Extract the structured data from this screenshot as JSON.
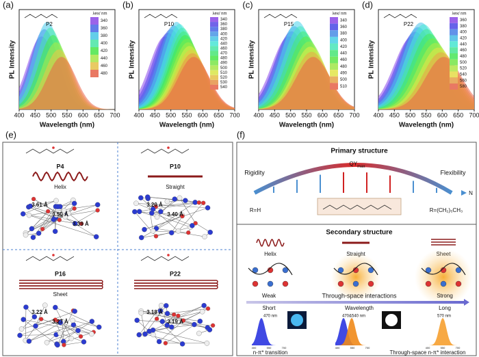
{
  "spectra": [
    {
      "label": "(a)",
      "polymer": "P2",
      "legend_title": "λex/ nm",
      "legend": [
        340,
        360,
        380,
        400,
        420,
        440,
        460,
        480
      ],
      "y_label": "PL Intensity",
      "x_label": "Wavelength (nm)",
      "xticks": [
        400,
        450,
        500,
        550,
        600,
        650,
        700
      ]
    },
    {
      "label": "(b)",
      "polymer": "P10",
      "legend_title": "λex/ nm",
      "legend": [
        340,
        360,
        380,
        400,
        420,
        440,
        460,
        470,
        480,
        490,
        500,
        510,
        520,
        530,
        540
      ],
      "y_label": "PL Intensity",
      "x_label": "Wavelength (nm)",
      "xticks": [
        400,
        450,
        500,
        550,
        600,
        650,
        700
      ]
    },
    {
      "label": "(c)",
      "polymer": "P15",
      "legend_title": "λex/ nm",
      "legend": [
        340,
        360,
        380,
        400,
        420,
        440,
        460,
        480,
        490,
        500,
        510
      ],
      "y_label": "PL Intensity",
      "x_label": "Wavelength (nm)",
      "xticks": [
        400,
        450,
        500,
        550,
        600,
        650,
        700
      ]
    },
    {
      "label": "(d)",
      "polymer": "P22",
      "legend_title": "λex/ nm",
      "legend": [
        360,
        380,
        400,
        420,
        440,
        460,
        480,
        500,
        520,
        540,
        560,
        580
      ],
      "y_label": "PL Intensity",
      "x_label": "Wavelength (nm)",
      "xticks": [
        400,
        450,
        500,
        550,
        600,
        650,
        700
      ]
    }
  ],
  "panel_e": {
    "label": "(e)",
    "cells": [
      {
        "polymer": "P4",
        "shape": "Helix",
        "distances": [
          "3.61 Å",
          "3.50 Å",
          "3.39 Å"
        ]
      },
      {
        "polymer": "P10",
        "shape": "Straight",
        "distances": [
          "3.20 Å",
          "3.40 Å"
        ]
      },
      {
        "polymer": "P16",
        "shape": "Sheet",
        "distances": [
          "3.22 Å",
          "3.27 Å"
        ]
      },
      {
        "polymer": "P22",
        "distances": [
          "3.18 Å",
          "3.19 Å"
        ]
      }
    ]
  },
  "panel_f": {
    "label": "(f)",
    "primary_title": "Primary structure",
    "qy": "QY",
    "qy_sub": "max",
    "rigidity": "Rigidity",
    "flexibility": "Flexibility",
    "n": "N",
    "r_h": "R=H",
    "r_long": "R=(CH₂)₅CH₃",
    "secondary_title": "Secondary structure",
    "shapes": [
      "Helix",
      "Straight",
      "Sheet"
    ],
    "weak": "Weak",
    "interactions": "Through-space interactions",
    "strong": "Strong",
    "short": "Short",
    "wavelength": "Wavelength",
    "long": "Long",
    "mini_spectra": [
      {
        "peak": "470 nm",
        "ticks": [
          400,
          550,
          700
        ]
      },
      {
        "peak": "470&540 nm",
        "ticks": [
          400,
          550,
          700
        ]
      },
      {
        "peak": "570 nm",
        "ticks": [
          400,
          550,
          700
        ]
      }
    ],
    "left_caption": "n-π* transition",
    "right_caption": "Through-space n-π* interaction"
  }
}
